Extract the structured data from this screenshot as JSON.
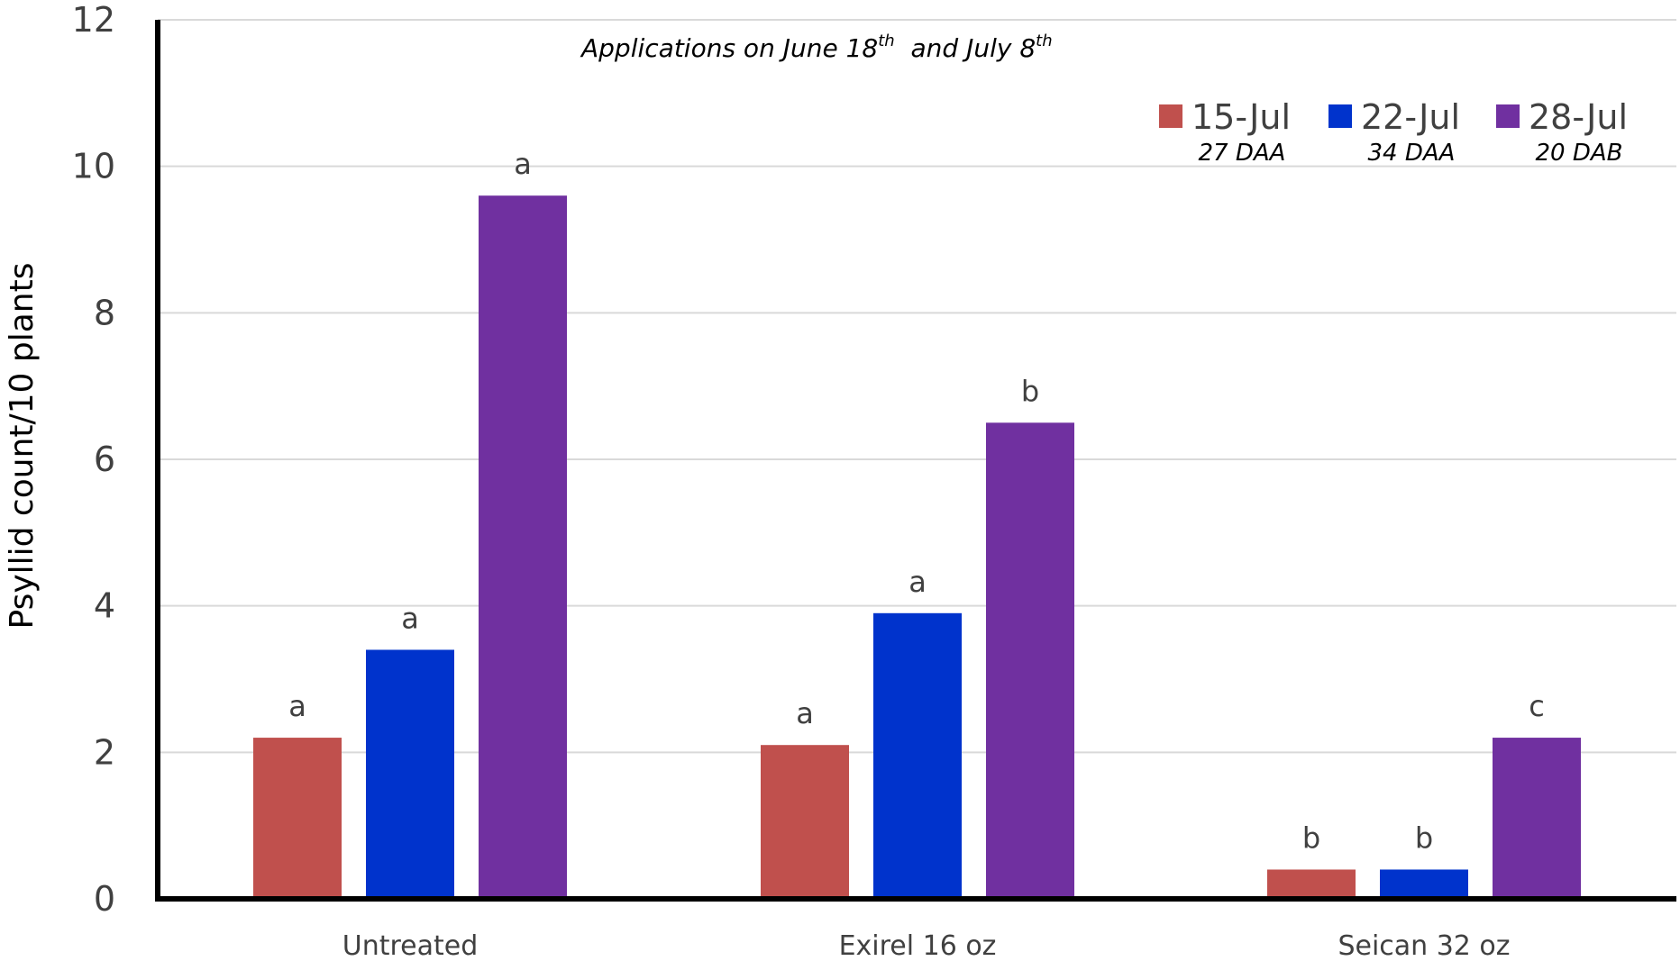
{
  "chart_data": {
    "type": "bar",
    "title": "",
    "annotation": {
      "prefix": "Applications on June 18",
      "sup1": "th",
      "middle": "  and July 8",
      "sup2": "th"
    },
    "xlabel": "",
    "ylabel": "Psyllid count/10 plants",
    "ylim": [
      0,
      12
    ],
    "yticks": [
      "0",
      "2",
      "4",
      "6",
      "8",
      "10",
      "12"
    ],
    "grid": true,
    "legend_position": "top-right",
    "categories": [
      "Untreated",
      "Exirel 16 oz",
      "Seican 32 oz"
    ],
    "series": [
      {
        "name": "15-Jul",
        "sublabel": "27 DAA",
        "color": "#c0504d",
        "values": [
          2.2,
          2.1,
          0.4
        ],
        "letters": [
          "a",
          "a",
          "b"
        ]
      },
      {
        "name": "22-Jul",
        "sublabel": "34 DAA",
        "color": "#0033cc",
        "values": [
          3.4,
          3.9,
          0.4
        ],
        "letters": [
          "a",
          "a",
          "b"
        ]
      },
      {
        "name": "28-Jul",
        "sublabel": "20 DAB",
        "color": "#7030a0",
        "values": [
          9.6,
          6.5,
          2.2
        ],
        "letters": [
          "a",
          "b",
          "c"
        ]
      }
    ]
  }
}
